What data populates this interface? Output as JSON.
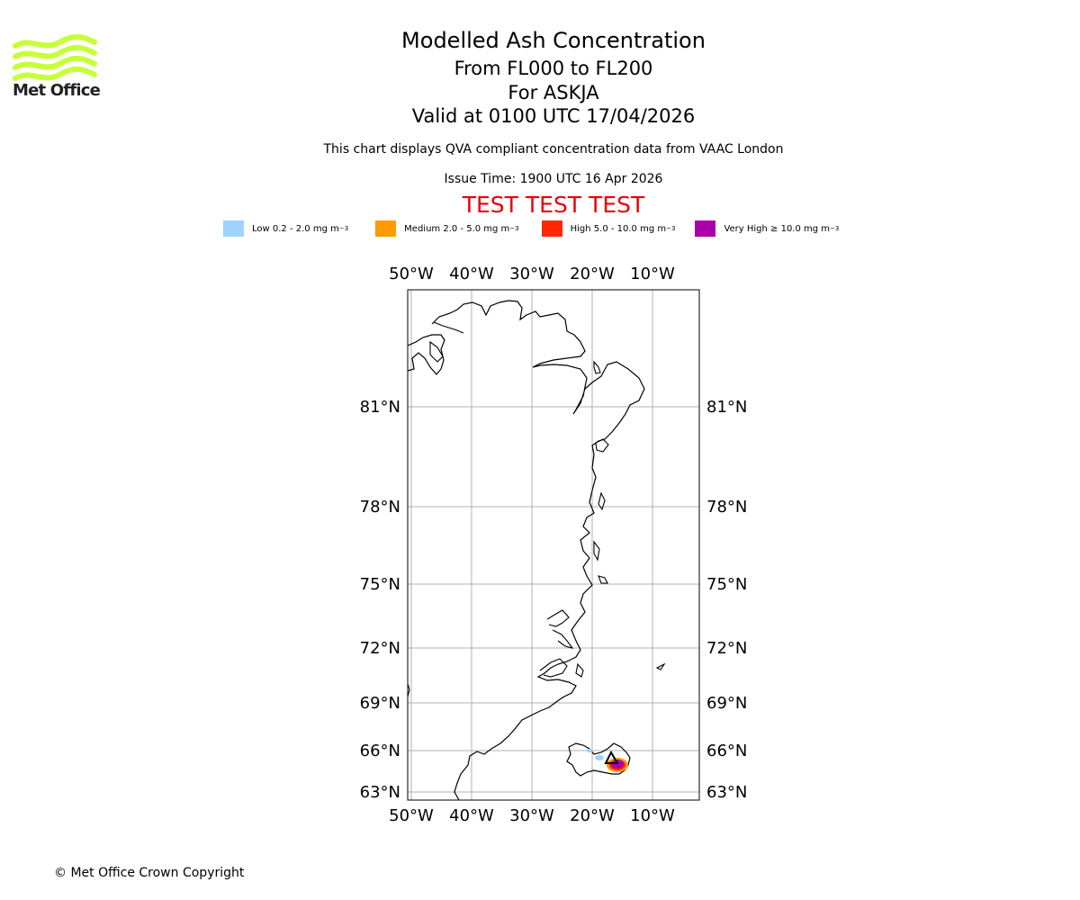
{
  "logo": {
    "text": "Met Office",
    "accent_color": "#c6ff3a"
  },
  "header": {
    "title": "Modelled Ash Concentration",
    "levels": "From FL000 to FL200",
    "volcano": "For ASKJA",
    "valid": "Valid at 0100 UTC 17/04/2026",
    "note": "This chart displays QVA compliant concentration data from VAAC London",
    "issue_time": "Issue Time: 1900 UTC 16 Apr 2026",
    "test_banner": "TEST TEST TEST"
  },
  "legend": [
    {
      "label": "Low 0.2 - 2.0 mg m",
      "exp": "−3",
      "color": "#a0d2ff"
    },
    {
      "label": "Medium 2.0 - 5.0 mg m",
      "exp": "−3",
      "color": "#ff9a00"
    },
    {
      "label": "High 5.0 - 10.0 mg m",
      "exp": "−3",
      "color": "#ff2800"
    },
    {
      "label": "Very High  ≥  10.0 mg m",
      "exp": "−3",
      "color": "#aa00aa"
    }
  ],
  "map": {
    "lon_labels": [
      "50°W",
      "40°W",
      "30°W",
      "20°W",
      "10°W"
    ],
    "lat_labels": [
      "81°N",
      "78°N",
      "75°N",
      "72°N",
      "69°N",
      "66°N",
      "63°N"
    ],
    "volcano_marker": "triangle-icon"
  },
  "footer": {
    "copyright": "© Met Office Crown Copyright"
  }
}
